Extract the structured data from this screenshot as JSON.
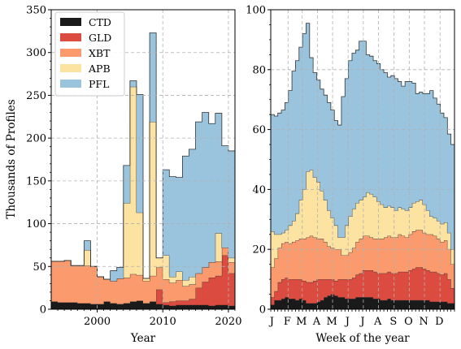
{
  "chart_data": [
    {
      "type": "area",
      "subtype": "stacked-step-histogram",
      "xlabel": "Year",
      "ylabel": "Thousands of Profiles",
      "xlim": [
        1993,
        2021
      ],
      "ylim": [
        0,
        350
      ],
      "xticks": [
        2000,
        2010,
        2020
      ],
      "yticks": [
        0,
        50,
        100,
        150,
        200,
        250,
        300,
        350
      ],
      "grid": true,
      "legend_position": "top-left",
      "x": [
        1993,
        1994,
        1995,
        1996,
        1997,
        1998,
        1999,
        2000,
        2001,
        2002,
        2003,
        2004,
        2005,
        2006,
        2007,
        2008,
        2009,
        2010,
        2011,
        2012,
        2013,
        2014,
        2015,
        2016,
        2017,
        2018,
        2019,
        2020
      ],
      "series": [
        {
          "name": "CTD",
          "color": "#1a1a1a",
          "values": [
            9,
            8,
            8,
            8,
            7,
            7,
            6,
            6,
            9,
            7,
            6,
            7,
            9,
            10,
            7,
            9,
            6,
            5,
            4,
            5,
            5,
            5,
            5,
            5,
            4,
            5,
            5,
            4
          ]
        },
        {
          "name": "GLD",
          "color": "#dc4b40",
          "values": [
            0,
            0,
            0,
            0,
            0,
            0,
            0,
            0,
            0,
            0,
            0,
            0,
            0,
            0,
            0,
            0,
            17,
            3,
            5,
            5,
            5,
            7,
            20,
            27,
            33,
            34,
            58,
            38
          ]
        },
        {
          "name": "XBT",
          "color": "#fa9a6d",
          "values": [
            47,
            48,
            49,
            43,
            44,
            44,
            44,
            32,
            26,
            26,
            30,
            30,
            32,
            30,
            26,
            30,
            26,
            27,
            22,
            24,
            17,
            17,
            17,
            17,
            18,
            17,
            9,
            13
          ]
        },
        {
          "name": "APB",
          "color": "#fde3a1",
          "values": [
            0,
            0,
            0,
            0,
            0,
            18,
            0,
            0,
            0,
            0,
            0,
            87,
            219,
            73,
            3,
            180,
            11,
            28,
            7,
            10,
            7,
            9,
            0,
            0,
            0,
            33,
            0,
            5
          ]
        },
        {
          "name": "PFL",
          "color": "#9ac4de",
          "values": [
            0,
            0,
            0,
            0,
            0,
            11,
            0,
            0,
            0,
            12,
            13,
            44,
            7,
            138,
            0,
            104,
            0,
            100,
            117,
            110,
            145,
            149,
            177,
            181,
            162,
            140,
            119,
            125
          ]
        }
      ]
    },
    {
      "type": "area",
      "subtype": "stacked-step-histogram",
      "xlabel": "Week of the year",
      "ylabel": "",
      "xlim": [
        1,
        53
      ],
      "ylim": [
        0,
        100
      ],
      "yticks": [
        0,
        20,
        40,
        60,
        80,
        100
      ],
      "xtick_labels": [
        "J",
        "F",
        "M",
        "A",
        "M",
        "J",
        "J",
        "A",
        "S",
        "O",
        "N",
        "D"
      ],
      "grid": true,
      "x": [
        1,
        2,
        3,
        4,
        5,
        6,
        7,
        8,
        9,
        10,
        11,
        12,
        13,
        14,
        15,
        16,
        17,
        18,
        19,
        20,
        21,
        22,
        23,
        24,
        25,
        26,
        27,
        28,
        29,
        30,
        31,
        32,
        33,
        34,
        35,
        36,
        37,
        38,
        39,
        40,
        41,
        42,
        43,
        44,
        45,
        46,
        47,
        48,
        49,
        50,
        51,
        52
      ],
      "series": [
        {
          "name": "CTD",
          "color": "#1a1a1a",
          "values": [
            1.5,
            3,
            3,
            3.5,
            4,
            3.5,
            3.5,
            3,
            3.5,
            3,
            2,
            2,
            2,
            2.5,
            3,
            4,
            4.5,
            5,
            4.5,
            4,
            4,
            3.5,
            3.5,
            3.5,
            4,
            4,
            4,
            4,
            4,
            3.5,
            3.5,
            3,
            3,
            3.5,
            3,
            3,
            3,
            3,
            3,
            3,
            3,
            3,
            3,
            3,
            3,
            2.5,
            2.5,
            2.5,
            2.5,
            2.5,
            2,
            2
          ]
        },
        {
          "name": "GLD",
          "color": "#dc4b40",
          "values": [
            2.5,
            3,
            6,
            6.5,
            6.5,
            6.5,
            6.5,
            7,
            6.5,
            6.5,
            7,
            7,
            7.5,
            7.5,
            7,
            6,
            5.5,
            5,
            5,
            6,
            6,
            6.5,
            6.5,
            7,
            7.5,
            8,
            9,
            9,
            9,
            9,
            8.5,
            9,
            9,
            9,
            9,
            9,
            9.5,
            9.5,
            9.5,
            10,
            10.5,
            11,
            11,
            10.5,
            10,
            10,
            10,
            9.5,
            9,
            9.5,
            8,
            5
          ]
        },
        {
          "name": "XBT",
          "color": "#fa9a6d",
          "values": [
            10,
            11,
            11.5,
            12,
            12,
            12,
            12.5,
            13,
            13.5,
            14,
            15,
            15.5,
            14.5,
            13.5,
            13.5,
            12.5,
            11,
            10.5,
            10.5,
            10,
            8,
            8,
            9,
            10,
            11,
            11.5,
            11.5,
            11.5,
            11,
            11,
            11.5,
            11.5,
            12,
            12,
            12,
            12,
            12.5,
            12,
            11.5,
            12,
            12.5,
            12.5,
            12.5,
            12,
            12,
            12.5,
            12,
            11.5,
            11,
            11,
            10,
            8
          ]
        },
        {
          "name": "APB",
          "color": "#fde3a1",
          "values": [
            12,
            8,
            4.5,
            3.5,
            4,
            6,
            7,
            9,
            13,
            16.5,
            22,
            22,
            20,
            19,
            16,
            14,
            12,
            10,
            8,
            4,
            6,
            10,
            12,
            13,
            13,
            13,
            13,
            14.5,
            14.5,
            14,
            12.5,
            11.5,
            10,
            10,
            10,
            9,
            9,
            9,
            9,
            9,
            9.5,
            9.5,
            10,
            9.5,
            8,
            6,
            6,
            6,
            6,
            6,
            5.5,
            5
          ]
        },
        {
          "name": "PFL",
          "color": "#9ac4de",
          "values": [
            39,
            39.5,
            40.5,
            41,
            42.5,
            45,
            50,
            51,
            51,
            52,
            49.5,
            37.5,
            35,
            34,
            34,
            35,
            36,
            36,
            35,
            37.5,
            47,
            49,
            52,
            52,
            51,
            53,
            52,
            46,
            46,
            45.5,
            46,
            45,
            45,
            43,
            44,
            44,
            42,
            41,
            43,
            42,
            40,
            36,
            36,
            37,
            39,
            42,
            40,
            39,
            37,
            35,
            33,
            35
          ]
        }
      ]
    }
  ]
}
